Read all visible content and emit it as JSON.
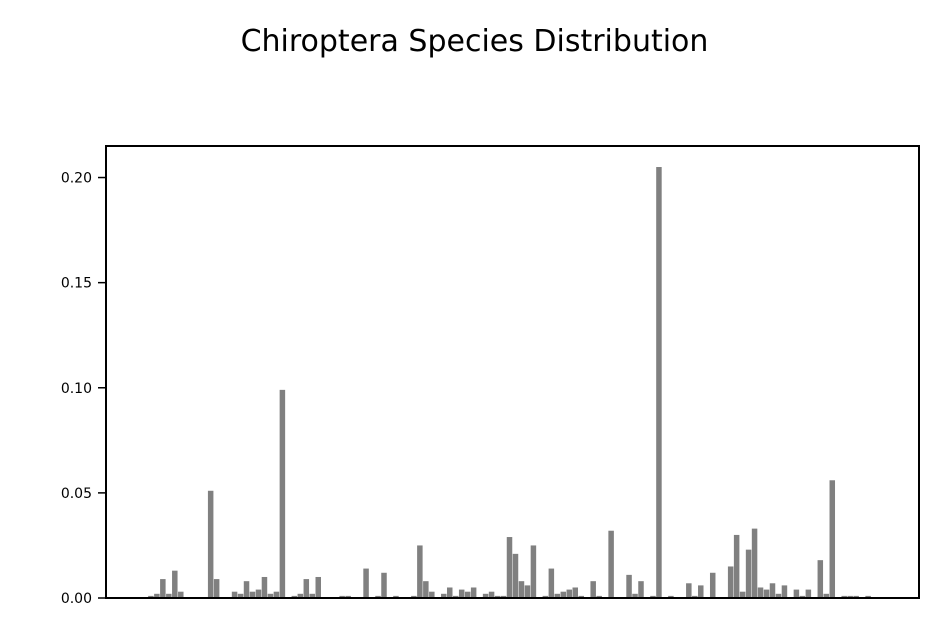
{
  "chart_data": {
    "type": "bar",
    "title": "Chiroptera Species Distribution",
    "xlabel": "",
    "ylabel": "",
    "ylim": [
      0,
      0.215
    ],
    "y_ticks": [
      {
        "value": 0.0,
        "label": "0.00"
      },
      {
        "value": 0.05,
        "label": "0.05"
      },
      {
        "value": 0.1,
        "label": "0.10"
      },
      {
        "value": 0.15,
        "label": "0.15"
      },
      {
        "value": 0.2,
        "label": "0.20"
      }
    ],
    "x_ticks_visible": false,
    "grid": false,
    "bar_color": "#808080",
    "values": [
      0.0,
      0.0,
      0.0,
      0.0,
      0.001,
      0.002,
      0.009,
      0.002,
      0.013,
      0.003,
      0.0,
      0.0,
      0.0,
      0.0,
      0.051,
      0.009,
      0.0,
      0.0,
      0.003,
      0.002,
      0.008,
      0.003,
      0.004,
      0.01,
      0.002,
      0.003,
      0.099,
      0.0,
      0.001,
      0.002,
      0.009,
      0.002,
      0.01,
      0.0,
      0.0,
      0.0,
      0.001,
      0.001,
      0.0,
      0.0,
      0.014,
      0.0,
      0.001,
      0.012,
      0.0,
      0.001,
      0.0,
      0.0,
      0.001,
      0.025,
      0.008,
      0.003,
      0.0,
      0.002,
      0.005,
      0.001,
      0.004,
      0.003,
      0.005,
      0.0,
      0.002,
      0.003,
      0.001,
      0.001,
      0.029,
      0.021,
      0.008,
      0.006,
      0.025,
      0.0,
      0.001,
      0.014,
      0.002,
      0.003,
      0.004,
      0.005,
      0.001,
      0.0,
      0.008,
      0.001,
      0.0,
      0.032,
      0.0,
      0.0,
      0.011,
      0.002,
      0.008,
      0.0,
      0.001,
      0.205,
      0.0,
      0.001,
      0.0,
      0.0,
      0.007,
      0.001,
      0.006,
      0.0,
      0.012,
      0.0,
      0.0,
      0.015,
      0.03,
      0.003,
      0.023,
      0.033,
      0.005,
      0.004,
      0.007,
      0.002,
      0.006,
      0.0,
      0.004,
      0.001,
      0.004,
      0.0,
      0.018,
      0.002,
      0.056,
      0.0,
      0.001,
      0.001,
      0.001,
      0.0,
      0.001,
      0.0,
      0.0,
      0.0,
      0.0,
      0.0
    ]
  }
}
